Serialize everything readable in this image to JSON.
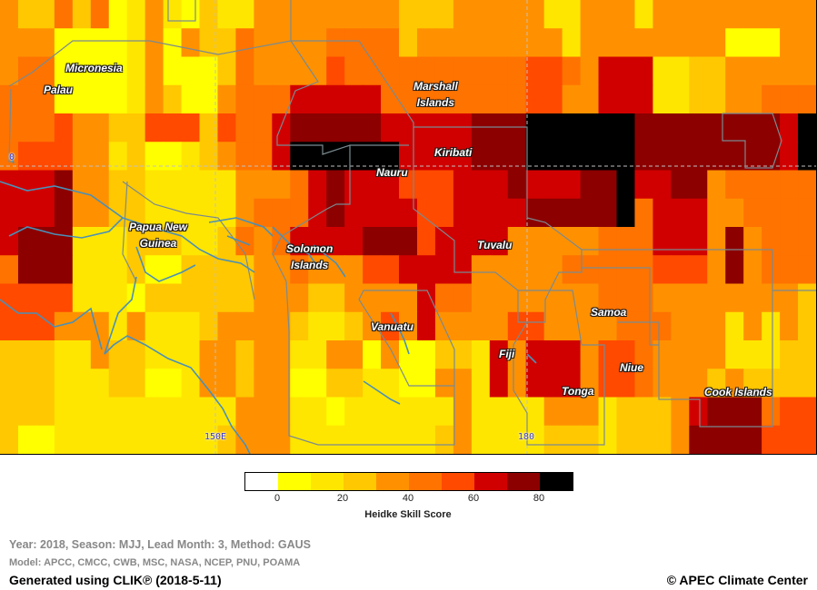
{
  "map": {
    "colors": {
      "ocean_coast": "#4a90b8",
      "boundary": "#7a8a90",
      "graticule": "#c0c0c0"
    },
    "grid_labels": {
      "lat0": "0",
      "lon150": "150E",
      "lon180": "180"
    },
    "places": [
      {
        "key": "micronesia",
        "text": "Micronesia"
      },
      {
        "key": "palau",
        "text": "Palau"
      },
      {
        "key": "marshall",
        "text": "Marshall\nIslands"
      },
      {
        "key": "kiribati",
        "text": "Kiribati"
      },
      {
        "key": "nauru",
        "text": "Nauru"
      },
      {
        "key": "png",
        "text": "Papua New\nGuinea"
      },
      {
        "key": "solomon",
        "text": "Solomon\nIslands"
      },
      {
        "key": "tuvalu",
        "text": "Tuvalu"
      },
      {
        "key": "vanuatu",
        "text": "Vanuatu"
      },
      {
        "key": "samoa",
        "text": "Samoa"
      },
      {
        "key": "fiji",
        "text": "Fiji"
      },
      {
        "key": "niue",
        "text": "Niue"
      },
      {
        "key": "tonga",
        "text": "Tonga"
      },
      {
        "key": "cook",
        "text": "Cook Islands"
      }
    ],
    "skill_classes": [
      "#ffffff",
      "#ffff00",
      "#ffe600",
      "#ffc800",
      "#ff9100",
      "#ff7300",
      "#ff4a00",
      "#d10000",
      "#8c0000",
      "#000000"
    ],
    "skill_grid": [
      [
        4,
        3,
        3,
        5,
        3,
        5,
        1,
        2,
        4,
        2,
        1,
        3,
        2,
        2,
        4,
        4,
        4,
        4,
        4,
        4,
        4,
        4,
        3,
        3,
        3,
        4,
        4,
        4,
        4,
        4,
        2,
        2,
        4,
        4,
        4,
        2,
        4,
        4,
        4,
        4,
        4,
        4,
        4,
        4,
        4
      ],
      [
        4,
        4,
        4,
        1,
        1,
        1,
        1,
        2,
        4,
        1,
        4,
        3,
        3,
        5,
        4,
        4,
        4,
        4,
        5,
        5,
        5,
        5,
        3,
        4,
        4,
        4,
        4,
        4,
        4,
        4,
        4,
        2,
        4,
        4,
        4,
        4,
        4,
        4,
        4,
        4,
        1,
        1,
        1,
        4,
        4
      ],
      [
        4,
        5,
        5,
        1,
        1,
        1,
        1,
        2,
        4,
        1,
        1,
        1,
        3,
        5,
        4,
        4,
        4,
        4,
        6,
        5,
        5,
        5,
        5,
        5,
        5,
        5,
        5,
        5,
        5,
        6,
        6,
        5,
        4,
        7,
        7,
        7,
        2,
        2,
        3,
        3,
        4,
        4,
        4,
        4,
        4
      ],
      [
        5,
        5,
        5,
        1,
        1,
        1,
        1,
        2,
        4,
        3,
        1,
        1,
        4,
        5,
        5,
        5,
        7,
        7,
        7,
        7,
        7,
        5,
        5,
        5,
        5,
        5,
        5,
        5,
        5,
        6,
        6,
        4,
        4,
        7,
        7,
        7,
        2,
        2,
        3,
        3,
        4,
        4,
        5,
        5,
        5
      ],
      [
        5,
        5,
        5,
        6,
        4,
        4,
        3,
        3,
        6,
        6,
        6,
        3,
        6,
        5,
        5,
        7,
        8,
        8,
        8,
        8,
        8,
        7,
        7,
        7,
        7,
        7,
        8,
        8,
        8,
        9,
        9,
        9,
        9,
        9,
        9,
        8,
        8,
        8,
        8,
        8,
        8,
        8,
        8,
        7,
        9
      ],
      [
        5,
        6,
        6,
        6,
        4,
        4,
        2,
        3,
        1,
        1,
        2,
        3,
        4,
        5,
        5,
        7,
        9,
        9,
        9,
        9,
        9,
        9,
        7,
        7,
        7,
        7,
        8,
        8,
        8,
        9,
        9,
        9,
        9,
        9,
        9,
        8,
        8,
        8,
        8,
        8,
        8,
        8,
        8,
        7,
        9
      ],
      [
        7,
        7,
        7,
        8,
        4,
        4,
        3,
        3,
        2,
        2,
        2,
        2,
        2,
        4,
        4,
        4,
        5,
        7,
        8,
        7,
        7,
        7,
        6,
        6,
        6,
        7,
        7,
        7,
        8,
        7,
        7,
        7,
        8,
        8,
        9,
        7,
        7,
        8,
        8,
        4,
        5,
        5,
        5,
        5,
        5
      ],
      [
        7,
        7,
        7,
        8,
        4,
        4,
        3,
        3,
        2,
        2,
        2,
        2,
        2,
        4,
        5,
        5,
        5,
        7,
        8,
        7,
        7,
        7,
        7,
        6,
        6,
        7,
        7,
        7,
        7,
        8,
        8,
        8,
        8,
        8,
        9,
        5,
        7,
        7,
        7,
        4,
        4,
        5,
        5,
        5,
        5
      ],
      [
        7,
        8,
        8,
        8,
        2,
        2,
        2,
        3,
        3,
        3,
        2,
        2,
        3,
        5,
        4,
        5,
        7,
        7,
        7,
        7,
        8,
        8,
        8,
        6,
        7,
        7,
        7,
        7,
        4,
        4,
        4,
        4,
        4,
        5,
        5,
        5,
        7,
        7,
        7,
        4,
        8,
        4,
        5,
        5,
        5
      ],
      [
        5,
        8,
        8,
        8,
        2,
        2,
        2,
        3,
        1,
        1,
        3,
        3,
        3,
        3,
        4,
        4,
        5,
        4,
        4,
        4,
        6,
        6,
        7,
        7,
        7,
        7,
        4,
        4,
        4,
        4,
        4,
        5,
        5,
        5,
        5,
        5,
        6,
        6,
        6,
        4,
        8,
        4,
        5,
        5,
        5
      ],
      [
        6,
        6,
        6,
        6,
        2,
        2,
        2,
        1,
        3,
        3,
        3,
        3,
        3,
        3,
        4,
        4,
        4,
        3,
        3,
        4,
        4,
        4,
        4,
        7,
        5,
        5,
        4,
        4,
        4,
        4,
        4,
        4,
        4,
        5,
        5,
        5,
        4,
        4,
        4,
        4,
        4,
        4,
        4,
        4,
        3
      ],
      [
        6,
        6,
        6,
        4,
        4,
        4,
        2,
        4,
        2,
        2,
        2,
        3,
        4,
        4,
        4,
        4,
        3,
        2,
        2,
        3,
        4,
        6,
        4,
        7,
        4,
        4,
        4,
        4,
        6,
        6,
        4,
        4,
        4,
        4,
        5,
        5,
        5,
        4,
        4,
        4,
        2,
        4,
        2,
        4,
        3
      ],
      [
        3,
        3,
        3,
        2,
        2,
        4,
        3,
        3,
        2,
        2,
        2,
        4,
        4,
        3,
        4,
        4,
        2,
        2,
        4,
        4,
        1,
        4,
        1,
        1,
        3,
        3,
        2,
        7,
        4,
        7,
        7,
        7,
        4,
        6,
        6,
        5,
        4,
        4,
        4,
        4,
        2,
        2,
        2,
        3,
        3
      ],
      [
        3,
        3,
        3,
        2,
        2,
        2,
        3,
        3,
        1,
        1,
        2,
        4,
        4,
        3,
        4,
        4,
        1,
        1,
        3,
        3,
        2,
        2,
        1,
        1,
        4,
        4,
        2,
        7,
        4,
        7,
        7,
        7,
        4,
        6,
        6,
        5,
        4,
        4,
        4,
        3,
        4,
        3,
        3,
        3,
        3
      ],
      [
        3,
        3,
        3,
        2,
        2,
        2,
        2,
        2,
        2,
        2,
        2,
        2,
        2,
        4,
        4,
        4,
        2,
        2,
        1,
        2,
        2,
        2,
        2,
        2,
        2,
        4,
        2,
        2,
        2,
        2,
        4,
        4,
        4,
        2,
        3,
        3,
        3,
        4,
        7,
        8,
        8,
        8,
        5,
        6,
        6
      ],
      [
        3,
        1,
        1,
        2,
        2,
        2,
        2,
        2,
        2,
        2,
        2,
        2,
        3,
        4,
        4,
        4,
        2,
        2,
        2,
        2,
        2,
        2,
        2,
        2,
        3,
        4,
        2,
        2,
        2,
        2,
        3,
        3,
        3,
        2,
        3,
        3,
        3,
        4,
        8,
        8,
        8,
        8,
        6,
        6,
        6
      ]
    ]
  },
  "colorbar": {
    "ticks": [
      "0",
      "20",
      "40",
      "60",
      "80"
    ],
    "title": "Heidke Skill Score"
  },
  "footer": {
    "line1": "Year: 2018, Season: MJJ, Lead Month: 3, Method: GAUS",
    "line2": "Model: APCC, CMCC, CWB, MSC, NASA, NCEP, PNU, POAMA",
    "line3": "Generated using CLIK℗ (2018-5-11)",
    "copyright": "© APEC Climate Center"
  }
}
